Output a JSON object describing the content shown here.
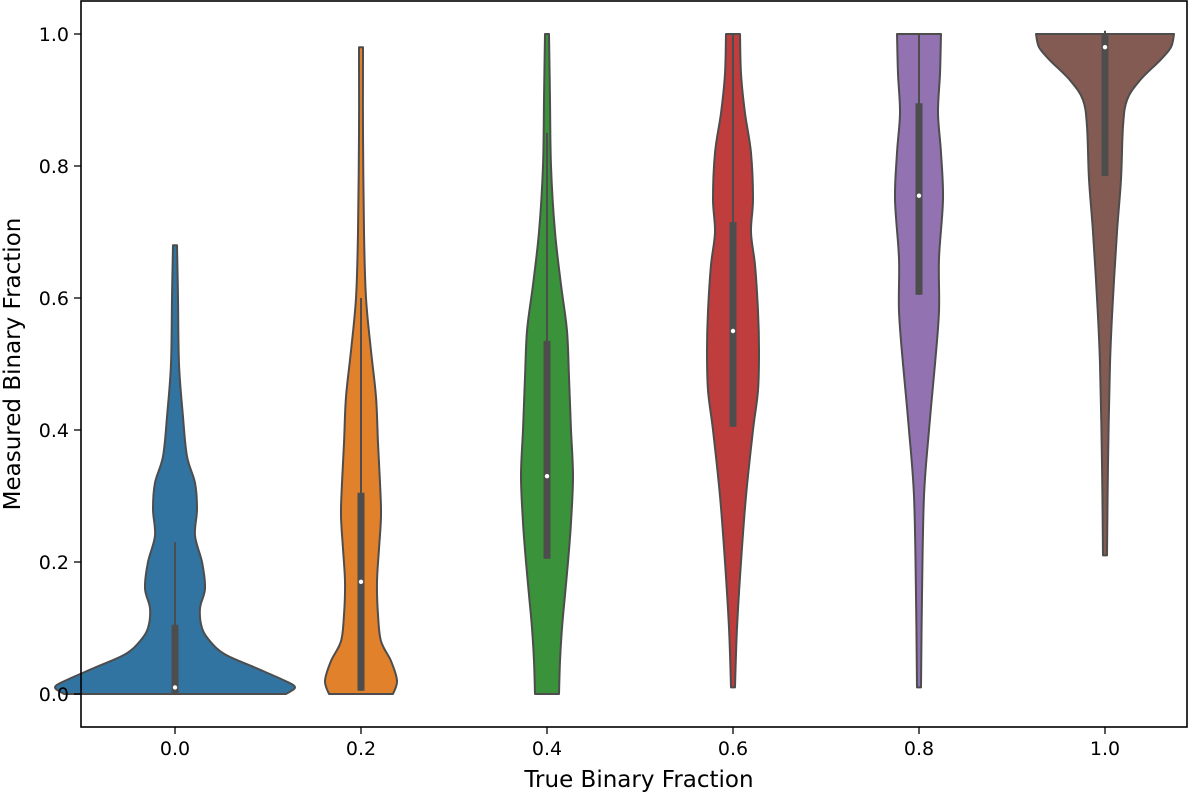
{
  "chart_data": {
    "type": "violin",
    "title": "",
    "xlabel": "True Binary Fraction",
    "ylabel": "Measured Binary Fraction",
    "categories": [
      "0.0",
      "0.2",
      "0.4",
      "0.6",
      "0.8",
      "1.0"
    ],
    "yticks": [
      "0.0",
      "0.2",
      "0.4",
      "0.6",
      "0.8",
      "1.0"
    ],
    "ylim": [
      -0.05,
      1.05
    ],
    "grid": false,
    "legend": null,
    "series": [
      {
        "name": "0.0",
        "color": "#3274a1",
        "min": 0.0,
        "max": 0.68,
        "q1": 0.0,
        "median": 0.01,
        "q3": 0.105,
        "whisker_high": 0.23,
        "profile": [
          [
            0.0,
            0.111
          ],
          [
            0.01,
            0.12
          ],
          [
            0.02,
            0.11
          ],
          [
            0.04,
            0.08
          ],
          [
            0.06,
            0.05
          ],
          [
            0.08,
            0.035
          ],
          [
            0.1,
            0.027
          ],
          [
            0.13,
            0.025
          ],
          [
            0.16,
            0.03
          ],
          [
            0.2,
            0.027
          ],
          [
            0.24,
            0.02
          ],
          [
            0.28,
            0.022
          ],
          [
            0.32,
            0.02
          ],
          [
            0.36,
            0.012
          ],
          [
            0.42,
            0.008
          ],
          [
            0.5,
            0.004
          ],
          [
            0.6,
            0.003
          ],
          [
            0.68,
            0.002
          ]
        ]
      },
      {
        "name": "0.2",
        "color": "#e1812c",
        "min": 0.0,
        "max": 0.98,
        "q1": 0.005,
        "median": 0.17,
        "q3": 0.305,
        "whisker_high": 0.6,
        "profile": [
          [
            0.0,
            0.032
          ],
          [
            0.02,
            0.036
          ],
          [
            0.05,
            0.03
          ],
          [
            0.08,
            0.02
          ],
          [
            0.12,
            0.017
          ],
          [
            0.17,
            0.016
          ],
          [
            0.22,
            0.018
          ],
          [
            0.27,
            0.02
          ],
          [
            0.32,
            0.019
          ],
          [
            0.38,
            0.017
          ],
          [
            0.45,
            0.015
          ],
          [
            0.52,
            0.01
          ],
          [
            0.6,
            0.005
          ],
          [
            0.7,
            0.003
          ],
          [
            0.85,
            0.002
          ],
          [
            0.98,
            0.002
          ]
        ]
      },
      {
        "name": "0.4",
        "color": "#3a923a",
        "min": 0.0,
        "max": 1.0,
        "q1": 0.205,
        "median": 0.33,
        "q3": 0.535,
        "whisker_high": 0.85,
        "profile": [
          [
            0.0,
            0.012
          ],
          [
            0.05,
            0.013
          ],
          [
            0.1,
            0.015
          ],
          [
            0.15,
            0.018
          ],
          [
            0.2,
            0.021
          ],
          [
            0.26,
            0.024
          ],
          [
            0.33,
            0.026
          ],
          [
            0.4,
            0.024
          ],
          [
            0.48,
            0.022
          ],
          [
            0.55,
            0.02
          ],
          [
            0.62,
            0.014
          ],
          [
            0.7,
            0.008
          ],
          [
            0.8,
            0.004
          ],
          [
            0.9,
            0.003
          ],
          [
            1.0,
            0.002
          ]
        ]
      },
      {
        "name": "0.6",
        "color": "#c03d3e",
        "min": 0.01,
        "max": 1.0,
        "q1": 0.405,
        "median": 0.55,
        "q3": 0.715,
        "whisker_high": 1.0,
        "profile": [
          [
            0.01,
            0.002
          ],
          [
            0.1,
            0.004
          ],
          [
            0.2,
            0.008
          ],
          [
            0.3,
            0.013
          ],
          [
            0.4,
            0.02
          ],
          [
            0.46,
            0.025
          ],
          [
            0.52,
            0.026
          ],
          [
            0.58,
            0.025
          ],
          [
            0.65,
            0.022
          ],
          [
            0.7,
            0.018
          ],
          [
            0.75,
            0.02
          ],
          [
            0.82,
            0.018
          ],
          [
            0.88,
            0.012
          ],
          [
            0.94,
            0.008
          ],
          [
            1.0,
            0.007
          ]
        ]
      },
      {
        "name": "0.8",
        "color": "#9372b2",
        "min": 0.01,
        "max": 1.0,
        "q1": 0.605,
        "median": 0.755,
        "q3": 0.895,
        "whisker_high": 1.0,
        "profile": [
          [
            0.01,
            0.002
          ],
          [
            0.15,
            0.003
          ],
          [
            0.3,
            0.005
          ],
          [
            0.4,
            0.01
          ],
          [
            0.5,
            0.016
          ],
          [
            0.58,
            0.02
          ],
          [
            0.66,
            0.02
          ],
          [
            0.75,
            0.024
          ],
          [
            0.82,
            0.022
          ],
          [
            0.88,
            0.019
          ],
          [
            0.94,
            0.021
          ],
          [
            1.0,
            0.022
          ]
        ]
      },
      {
        "name": "1.0",
        "color": "#845b53",
        "min": 0.21,
        "max": 1.0,
        "q1": 0.785,
        "median": 0.98,
        "q3": 1.0,
        "whisker_high": 1.005,
        "profile": [
          [
            0.21,
            0.002
          ],
          [
            0.35,
            0.003
          ],
          [
            0.5,
            0.005
          ],
          [
            0.6,
            0.008
          ],
          [
            0.7,
            0.012
          ],
          [
            0.78,
            0.016
          ],
          [
            0.86,
            0.018
          ],
          [
            0.9,
            0.022
          ],
          [
            0.93,
            0.035
          ],
          [
            0.96,
            0.055
          ],
          [
            0.98,
            0.066
          ],
          [
            1.0,
            0.069
          ]
        ]
      }
    ]
  }
}
